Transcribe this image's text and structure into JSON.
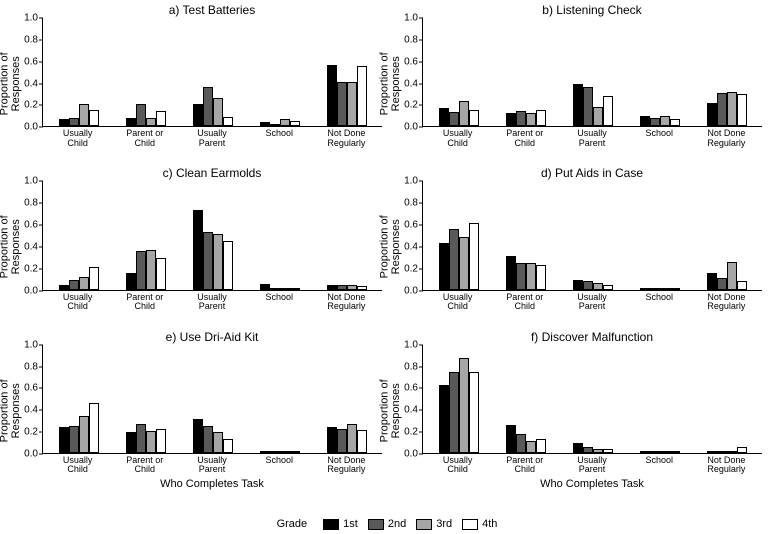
{
  "layout": {
    "ylim": [
      0,
      1.0
    ],
    "ytick_step": 0.2,
    "yticks": [
      "0.0",
      "0.2",
      "0.4",
      "0.6",
      "0.8",
      "1.0"
    ],
    "ylabel": "Proportion of\nResponses",
    "xlabel": "Who Completes Task",
    "categories": [
      "Usually\nChild",
      "Parent or\nChild",
      "Usually\nParent",
      "School",
      "Not Done\nRegularly"
    ],
    "series_colors": [
      "#000000",
      "#595959",
      "#a6a6a6",
      "#ffffff"
    ],
    "border_color": "#000000",
    "background": "#ffffff",
    "title_fontsize": 12,
    "tick_fontsize": 10,
    "xtick_fontsize": 9,
    "label_fontsize": 11
  },
  "legend": {
    "title": "Grade",
    "items": [
      "1st",
      "2nd",
      "3rd",
      "4th"
    ]
  },
  "panels": [
    {
      "key": "a",
      "title": "a) Test Batteries",
      "show_xlabel": false,
      "data": [
        [
          0.07,
          0.08,
          0.21,
          0.15
        ],
        [
          0.08,
          0.21,
          0.08,
          0.14
        ],
        [
          0.21,
          0.36,
          0.26,
          0.09
        ],
        [
          0.04,
          0.02,
          0.07,
          0.05
        ],
        [
          0.57,
          0.41,
          0.41,
          0.56
        ]
      ]
    },
    {
      "key": "b",
      "title": "b) Listening Check",
      "show_xlabel": false,
      "data": [
        [
          0.17,
          0.13,
          0.23,
          0.15
        ],
        [
          0.12,
          0.14,
          0.12,
          0.15
        ],
        [
          0.39,
          0.36,
          0.18,
          0.28
        ],
        [
          0.1,
          0.08,
          0.1,
          0.07
        ],
        [
          0.22,
          0.31,
          0.32,
          0.3
        ]
      ]
    },
    {
      "key": "c",
      "title": "c) Clean Earmolds",
      "show_xlabel": false,
      "data": [
        [
          0.04,
          0.09,
          0.12,
          0.21
        ],
        [
          0.15,
          0.36,
          0.37,
          0.29
        ],
        [
          0.74,
          0.53,
          0.51,
          0.45
        ],
        [
          0.05,
          0.0,
          0.02,
          0.0
        ],
        [
          0.04,
          0.04,
          0.04,
          0.03
        ]
      ]
    },
    {
      "key": "d",
      "title": "d) Put Aids in Case",
      "show_xlabel": false,
      "data": [
        [
          0.43,
          0.56,
          0.49,
          0.62
        ],
        [
          0.31,
          0.25,
          0.25,
          0.23
        ],
        [
          0.09,
          0.08,
          0.06,
          0.04
        ],
        [
          0.02,
          0.0,
          0.0,
          0.0
        ],
        [
          0.15,
          0.11,
          0.26,
          0.08
        ]
      ]
    },
    {
      "key": "e",
      "title": "e) Use Dri-Aid Kit",
      "show_xlabel": true,
      "data": [
        [
          0.24,
          0.25,
          0.34,
          0.46
        ],
        [
          0.19,
          0.27,
          0.2,
          0.22
        ],
        [
          0.31,
          0.25,
          0.19,
          0.13
        ],
        [
          0.02,
          0.0,
          0.0,
          0.0
        ],
        [
          0.24,
          0.22,
          0.27,
          0.21
        ]
      ]
    },
    {
      "key": "f",
      "title": "f) Discover Malfunction",
      "show_xlabel": true,
      "data": [
        [
          0.63,
          0.75,
          0.88,
          0.75
        ],
        [
          0.26,
          0.18,
          0.11,
          0.13
        ],
        [
          0.09,
          0.06,
          0.04,
          0.04
        ],
        [
          0.02,
          0.0,
          0.0,
          0.0
        ],
        [
          0.0,
          0.02,
          0.0,
          0.06
        ]
      ]
    }
  ]
}
